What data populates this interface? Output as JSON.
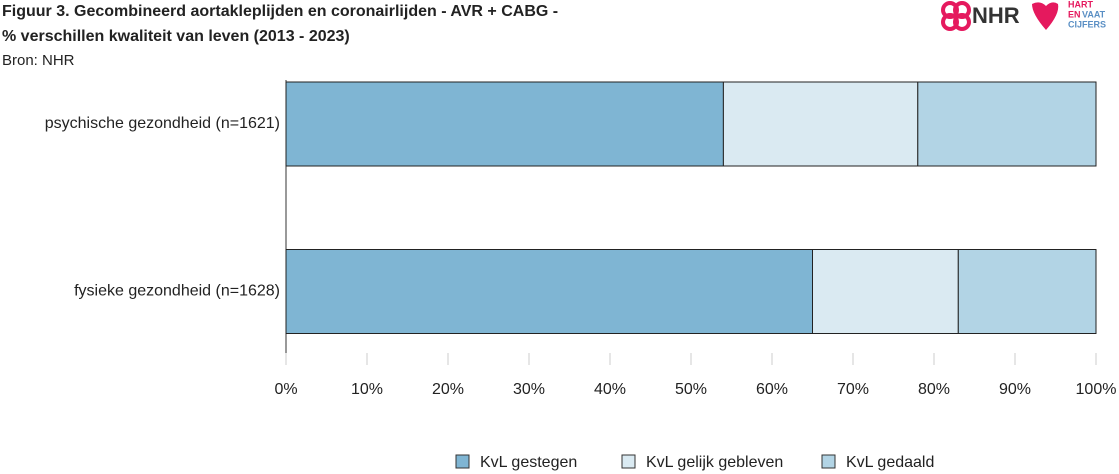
{
  "chart_data": {
    "type": "stacked-bar-horizontal",
    "title": "Figuur 3. Gecombineerd aortakleplijden en coronairlijden - AVR + CABG -",
    "title_line2": "% verschillen kwaliteit van leven (2013 - 2023)",
    "subtitle": "Bron: NHR",
    "categories": [
      "psychische gezondheid (n=1621)",
      "fysieke gezondheid (n=1628)"
    ],
    "series": [
      {
        "name": "KvL gestegen",
        "color": "#7fb5d3",
        "values": [
          54,
          65
        ]
      },
      {
        "name": "KvL gelijk gebleven",
        "color": "#daeaf2",
        "values": [
          24,
          18
        ]
      },
      {
        "name": "KvL gedaald",
        "color": "#b2d4e5",
        "values": [
          22,
          17
        ]
      }
    ],
    "xlim": [
      0,
      100
    ],
    "xticks": [
      {
        "value": 0,
        "label": "0%"
      },
      {
        "value": 10,
        "label": "10%"
      },
      {
        "value": 20,
        "label": "20%"
      },
      {
        "value": 30,
        "label": "30%"
      },
      {
        "value": 40,
        "label": "40%"
      },
      {
        "value": 50,
        "label": "50%"
      },
      {
        "value": 60,
        "label": "60%"
      },
      {
        "value": 70,
        "label": "70%"
      },
      {
        "value": 80,
        "label": "80%"
      },
      {
        "value": 90,
        "label": "90%"
      },
      {
        "value": 100,
        "label": "100%"
      }
    ],
    "legend": "bottom"
  },
  "logos": {
    "nhr": "NHR",
    "hart": [
      "HART",
      "EN",
      "VAAT",
      "CIJFERS"
    ]
  }
}
